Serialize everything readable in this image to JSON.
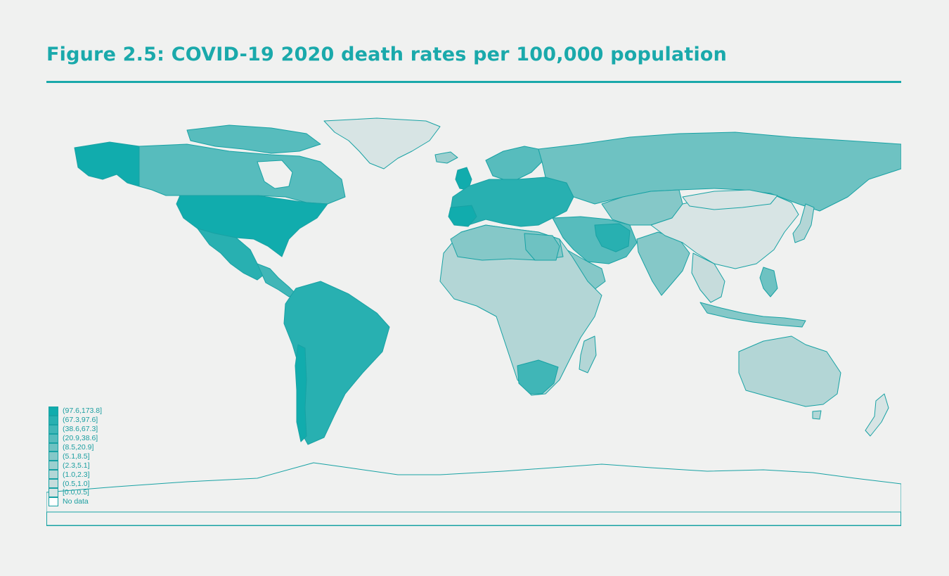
{
  "figure": {
    "title": "Figure 2.5: COVID-19 2020 death rates per 100,000 population"
  },
  "legend": {
    "items": [
      {
        "label": "(97.6,173.8]",
        "color": "#11acad"
      },
      {
        "label": "(67.3,97.6]",
        "color": "#28b0b1"
      },
      {
        "label": "(38.6,67.3]",
        "color": "#40b6b7"
      },
      {
        "label": "(20.9,38.6]",
        "color": "#57bcbd"
      },
      {
        "label": "(8.5,20.9]",
        "color": "#6ec2c2"
      },
      {
        "label": "(5.1,8.5]",
        "color": "#85c8c8"
      },
      {
        "label": "(2.3,5.1]",
        "color": "#9ccfcf"
      },
      {
        "label": "(1.0,2.3]",
        "color": "#b3d6d6"
      },
      {
        "label": "(0.5,1.0]",
        "color": "#c6dcdc"
      },
      {
        "label": "[0.0,0.5]",
        "color": "#d7e4e4"
      },
      {
        "label": "No data",
        "color": "#ffffff"
      }
    ]
  },
  "colors": {
    "accent": "#1aa9ab",
    "background": "#f0f1f0",
    "border": "#18a2a4"
  }
}
